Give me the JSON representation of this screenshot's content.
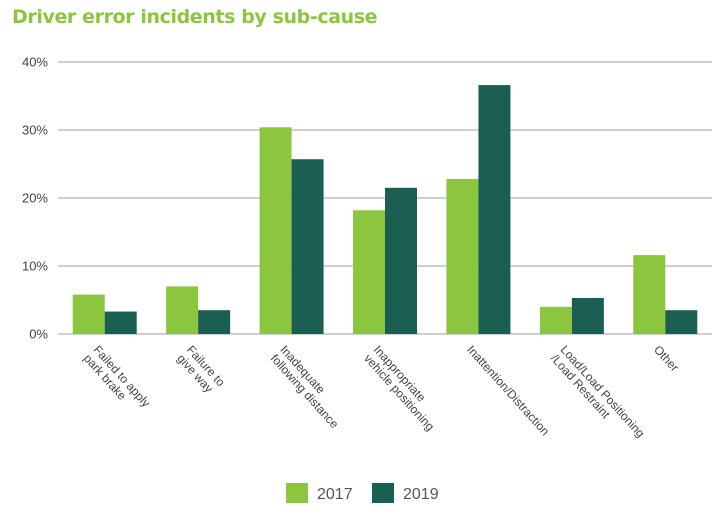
{
  "title": "Driver error incidents by sub-cause",
  "colors": {
    "title": "#8cc63f",
    "s2017": "#8cc63f",
    "s2019": "#1b5e52",
    "grid": "#b3b3b3",
    "text": "#444444"
  },
  "chart_data": {
    "type": "bar",
    "title": "Driver error incidents by sub-cause",
    "xlabel": "",
    "ylabel": "",
    "ylim": [
      0,
      40
    ],
    "yticks": [
      "0%",
      "10%",
      "20%",
      "30%",
      "40%"
    ],
    "grid": true,
    "legend_position": "bottom-center",
    "categories": [
      [
        "Failed to apply",
        "park brake"
      ],
      [
        "Failure to",
        "give way"
      ],
      [
        "Inadequate",
        "following distance"
      ],
      [
        "Inappropriate",
        "vehicle positioning"
      ],
      [
        "Inattention/Distraction"
      ],
      [
        "Load/Load Positioning",
        "/Load Restraint"
      ],
      [
        "Other"
      ]
    ],
    "series": [
      {
        "name": "2017",
        "values": [
          5.8,
          7.0,
          30.4,
          18.2,
          22.8,
          4.0,
          11.6
        ]
      },
      {
        "name": "2019",
        "values": [
          3.3,
          3.5,
          25.7,
          21.5,
          36.6,
          5.3,
          3.5
        ]
      }
    ]
  }
}
